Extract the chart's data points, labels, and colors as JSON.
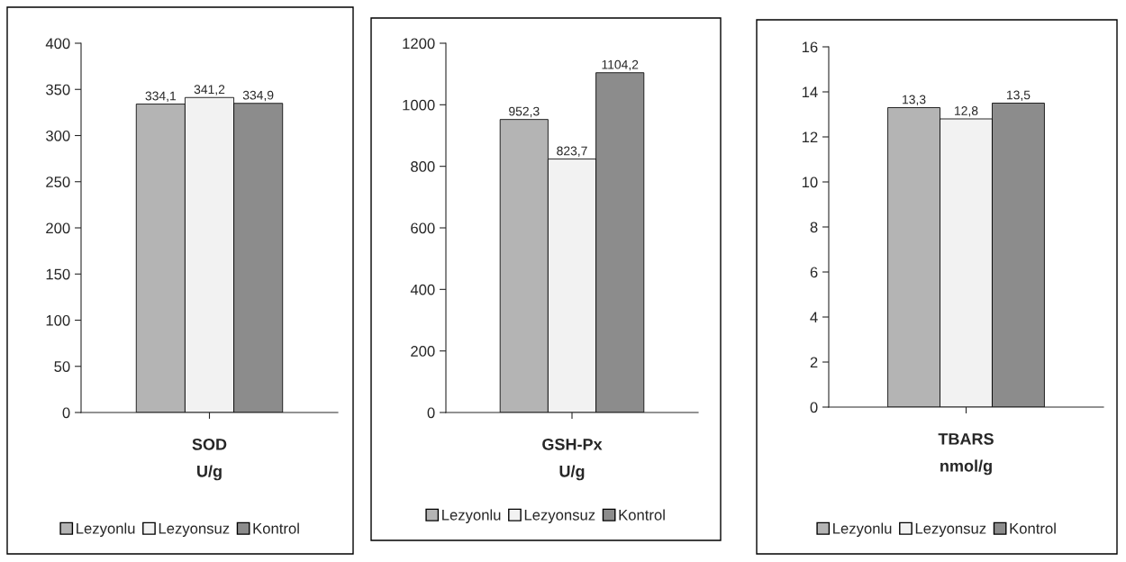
{
  "chart_data": [
    {
      "type": "bar",
      "xlabel": "SOD\nU/g",
      "categories": [
        null
      ],
      "ylim": [
        0,
        400
      ],
      "yticks": [
        0,
        50,
        100,
        150,
        200,
        250,
        300,
        350,
        400
      ],
      "legend": "bottom",
      "grid": false,
      "series": [
        {
          "name": "Lezyonlu",
          "color": "#b4b4b4",
          "values": [
            334.1
          ],
          "value_labels": [
            "334,1"
          ]
        },
        {
          "name": "Lezyonsuz",
          "color": "#f2f2f2",
          "values": [
            341.2
          ],
          "value_labels": [
            "341,2"
          ]
        },
        {
          "name": "Kontrol",
          "color": "#8c8c8c",
          "values": [
            334.9
          ],
          "value_labels": [
            "334,9"
          ]
        }
      ]
    },
    {
      "type": "bar",
      "xlabel": "GSH-Px\nU/g",
      "categories": [
        null
      ],
      "ylim": [
        0,
        1200
      ],
      "yticks": [
        0,
        200,
        400,
        600,
        800,
        1000,
        1200
      ],
      "legend": "bottom",
      "grid": false,
      "series": [
        {
          "name": "Lezyonlu",
          "color": "#b4b4b4",
          "values": [
            952.3
          ],
          "value_labels": [
            "952,3"
          ]
        },
        {
          "name": "Lezyonsuz",
          "color": "#f2f2f2",
          "values": [
            823.7
          ],
          "value_labels": [
            "823,7"
          ]
        },
        {
          "name": "Kontrol",
          "color": "#8c8c8c",
          "values": [
            1104.2
          ],
          "value_labels": [
            "1104,2"
          ]
        }
      ]
    },
    {
      "type": "bar",
      "xlabel": "TBARS\nnmol/g",
      "categories": [
        null
      ],
      "ylim": [
        0,
        16
      ],
      "yticks": [
        0,
        2,
        4,
        6,
        8,
        10,
        12,
        14,
        16
      ],
      "legend": "bottom",
      "grid": false,
      "series": [
        {
          "name": "Lezyonlu",
          "color": "#b4b4b4",
          "values": [
            13.3
          ],
          "value_labels": [
            "13,3"
          ]
        },
        {
          "name": "Lezyonsuz",
          "color": "#f2f2f2",
          "values": [
            12.8
          ],
          "value_labels": [
            "12,8"
          ]
        },
        {
          "name": "Kontrol",
          "color": "#8c8c8c",
          "values": [
            13.5
          ],
          "value_labels": [
            "13,5"
          ]
        }
      ]
    }
  ]
}
